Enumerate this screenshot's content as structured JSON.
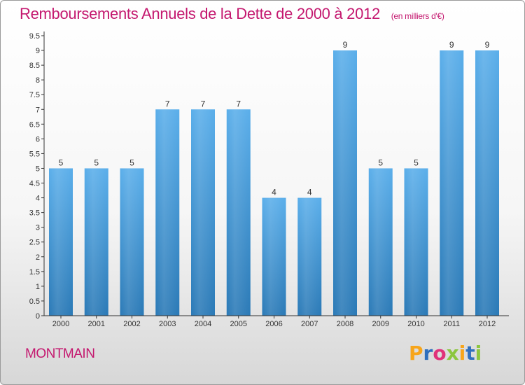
{
  "header": {
    "title": "Remboursements Annuels de la Dette de 2000 à 2012",
    "subtitle": "(en milliers d'€)"
  },
  "footer": {
    "place": "MONTMAIN",
    "logo_letters": [
      "P",
      "r",
      "o",
      "x",
      "i",
      "t",
      "i"
    ],
    "logo_colors": [
      "#f7a51b",
      "#2f6fbd",
      "#e0317a",
      "#8cc63f",
      "#f7a51b",
      "#2f6fbd",
      "#8cc63f"
    ]
  },
  "chart_data": {
    "type": "bar",
    "categories": [
      "2000",
      "2001",
      "2002",
      "2003",
      "2004",
      "2005",
      "2006",
      "2007",
      "2008",
      "2009",
      "2010",
      "2011",
      "2012"
    ],
    "values": [
      5,
      5,
      5,
      7,
      7,
      7,
      4,
      4,
      9,
      5,
      5,
      9,
      9
    ],
    "data_labels": [
      "5",
      "5",
      "5",
      "7",
      "7",
      "7",
      "4",
      "4",
      "9",
      "5",
      "5",
      "9",
      "9"
    ],
    "ylim": [
      0,
      9.5
    ],
    "y_ticks": [
      "0",
      "0.5",
      "1",
      "1.5",
      "2",
      "2.5",
      "3",
      "3.5",
      "4",
      "4.5",
      "5",
      "5.5",
      "6",
      "6.5",
      "7",
      "7.5",
      "8",
      "8.5",
      "9",
      "9.5"
    ],
    "grid": false,
    "colors": {
      "bar_top": "#5aaeea",
      "bar_bottom": "#2a79b6",
      "axis": "#333333",
      "label": "#333333"
    }
  }
}
